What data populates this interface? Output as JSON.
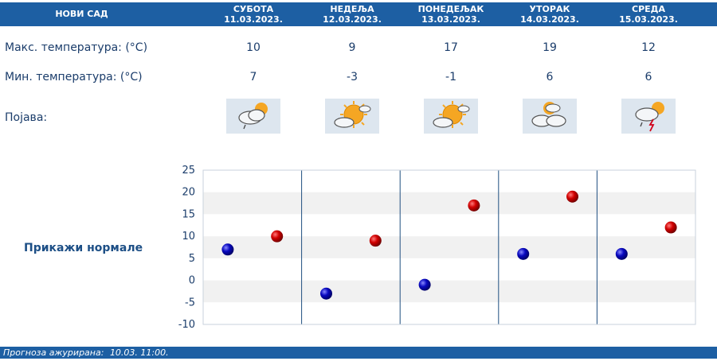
{
  "header": {
    "city": "НОВИ САД",
    "days": [
      {
        "name": "СУБОТА",
        "date": "11.03.2023."
      },
      {
        "name": "НЕДЕЉА",
        "date": "12.03.2023."
      },
      {
        "name": "ПОНЕДЕЉАК",
        "date": "13.03.2023."
      },
      {
        "name": "УТОРАК",
        "date": "14.03.2023."
      },
      {
        "name": "СРЕДА",
        "date": "15.03.2023."
      }
    ]
  },
  "rows": {
    "max_label": "Макс. температура: (°C)",
    "min_label": "Мин. температура: (°C)",
    "phenomenon_label": "Појава:"
  },
  "max_temps": [
    "10",
    "9",
    "17",
    "19",
    "12"
  ],
  "min_temps": [
    "7",
    "-3",
    "-1",
    "6",
    "6"
  ],
  "icons": [
    "cloud-sun-rain-icon",
    "sun-cloud-icon",
    "sun-cloud-icon",
    "cloud-sun-icon",
    "cloud-storm-icon"
  ],
  "show_normals": "Прикажи нормале",
  "footer": {
    "label": "Прогноза ажурирана:",
    "time": "10.03. 11:00."
  },
  "colors": {
    "header": "#1d5fa3",
    "max_dot": "#c40000",
    "min_dot": "#0a0ab8"
  },
  "chart_data": {
    "type": "scatter",
    "categories": [
      "СУБОТА",
      "НЕДЕЉА",
      "ПОНЕДЕЉАК",
      "УТОРАК",
      "СРЕДА"
    ],
    "series": [
      {
        "values": [
          7,
          -3,
          -1,
          6,
          6
        ]
      },
      {
        "values": [
          10,
          9,
          17,
          19,
          12
        ]
      }
    ],
    "ylim": [
      -10,
      25
    ],
    "yticks": [
      25,
      20,
      15,
      10,
      5,
      0,
      -5,
      -10
    ],
    "grid": "banded"
  }
}
